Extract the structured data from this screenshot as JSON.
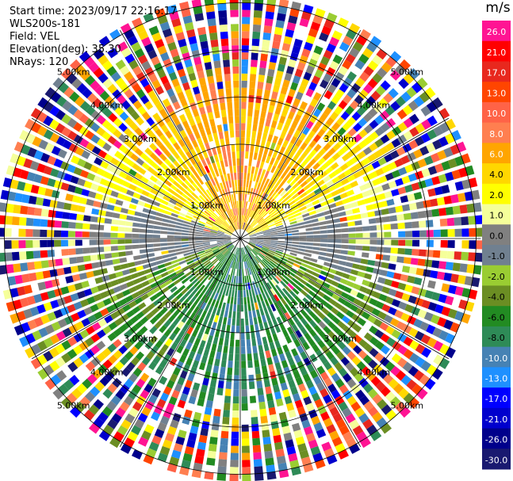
{
  "info": {
    "start_time": "Start time: 2023/09/17 22:16:17",
    "instrument": "WLS200s-181",
    "field": "Field: VEL",
    "elevation": "Elevation(deg): 35.30",
    "nrays": "NRays: 120"
  },
  "chart_data": {
    "type": "heatmap",
    "title": "",
    "projection": "polar",
    "field": "VEL",
    "elevation_deg": 35.3,
    "nrays": 120,
    "range_ring_labels": [
      "1.00km",
      "2.00km",
      "3.00km",
      "4.00km",
      "5.00km"
    ],
    "range_rings_km": [
      1,
      2,
      3,
      4,
      5
    ],
    "colorbar": {
      "unit": "m/s",
      "ticks": [
        "26.0",
        "21.0",
        "17.0",
        "13.0",
        "10.0",
        "8.0",
        "6.0",
        "4.0",
        "2.0",
        "1.0",
        "0.0",
        "-1.0",
        "-2.0",
        "-4.0",
        "-6.0",
        "-8.0",
        "-10.0",
        "-13.0",
        "-17.0",
        "-21.0",
        "-26.0",
        "-30.0"
      ],
      "colors": [
        "#ff1493",
        "#ff0000",
        "#e8281e",
        "#ff4500",
        "#ff6347",
        "#ff7f50",
        "#ffa500",
        "#ffd700",
        "#ffff00",
        "#f5ff9a",
        "#808080",
        "#708090",
        "#9acd32",
        "#6b8e23",
        "#228b22",
        "#2e8b57",
        "#4682b4",
        "#1e90ff",
        "#0000ff",
        "#0000cd",
        "#00008b",
        "#191970"
      ]
    },
    "pattern": "northern sector mostly +2 to +10 m/s (yellow/orange/salmon); southern sector mostly -2 to -8 m/s (green); near-zero gray band along west-east axis; noisy multicolour speckle beyond ~3 km"
  }
}
